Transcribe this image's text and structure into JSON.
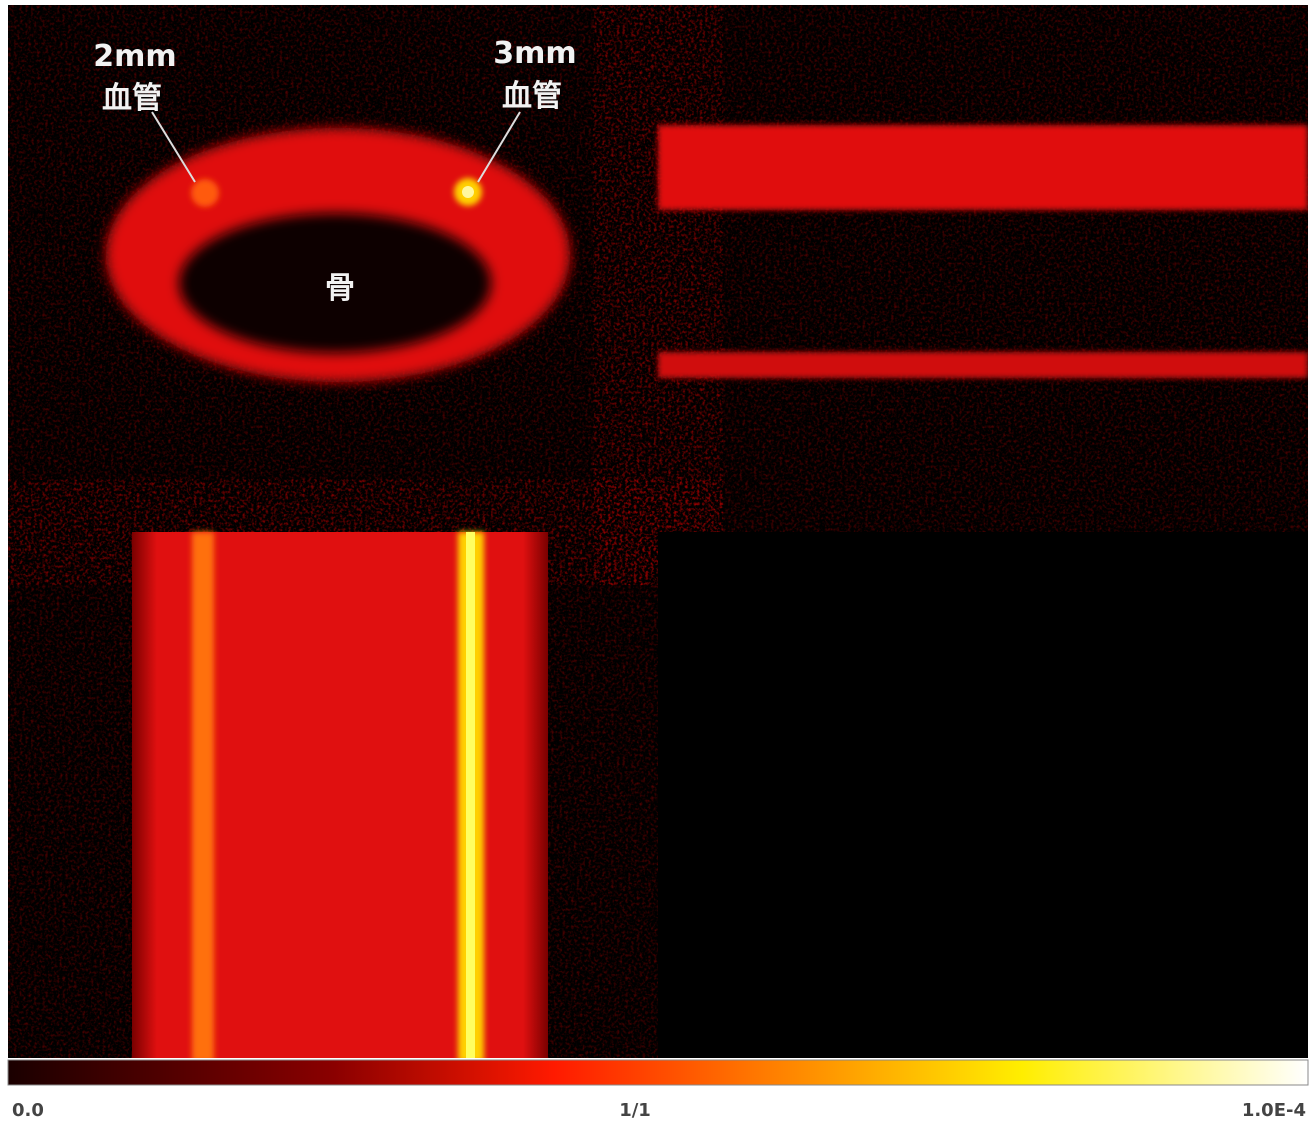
{
  "annotations": [
    {
      "size": "2mm",
      "label": "血管"
    },
    {
      "size": "3mm",
      "label": "血管"
    },
    {
      "label": "骨"
    }
  ],
  "colorbar": {
    "labels": [
      "0.0",
      "1/1",
      "1.0E-4"
    ]
  }
}
